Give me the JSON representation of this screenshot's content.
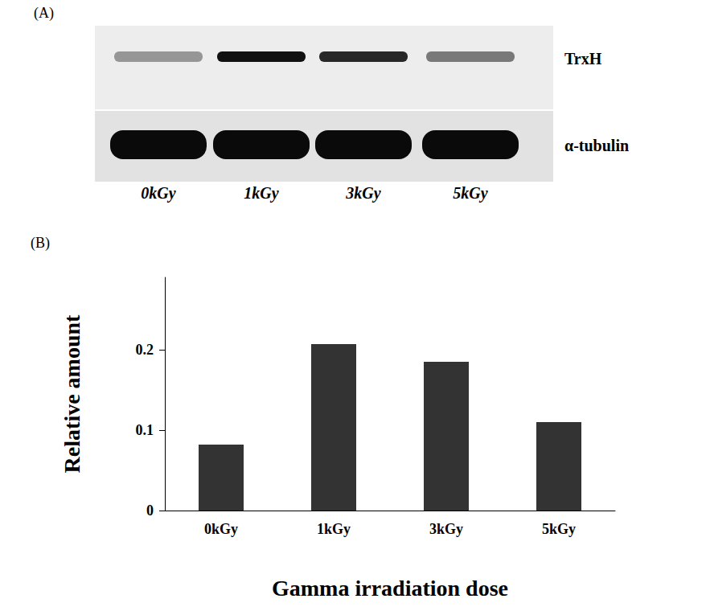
{
  "chart_data": {
    "type": "bar",
    "annotation": "(B)",
    "categories": [
      "0kGy",
      "1kGy",
      "3kGy",
      "5kGy"
    ],
    "values": [
      0.082,
      0.207,
      0.185,
      0.11
    ],
    "color": "#333333",
    "x_label": "Gamma irradiation dose",
    "y_label": "Relative amount",
    "ylim": [
      0,
      0.29
    ],
    "yticks": [
      0,
      0.1,
      0.2
    ],
    "grid": false
  },
  "blot": {
    "panel_label": "(A)",
    "lanes": [
      "0kGy",
      "1kGy",
      "3kGy",
      "5kGy"
    ],
    "bands": [
      "TrxH",
      "α-tubulin"
    ]
  }
}
